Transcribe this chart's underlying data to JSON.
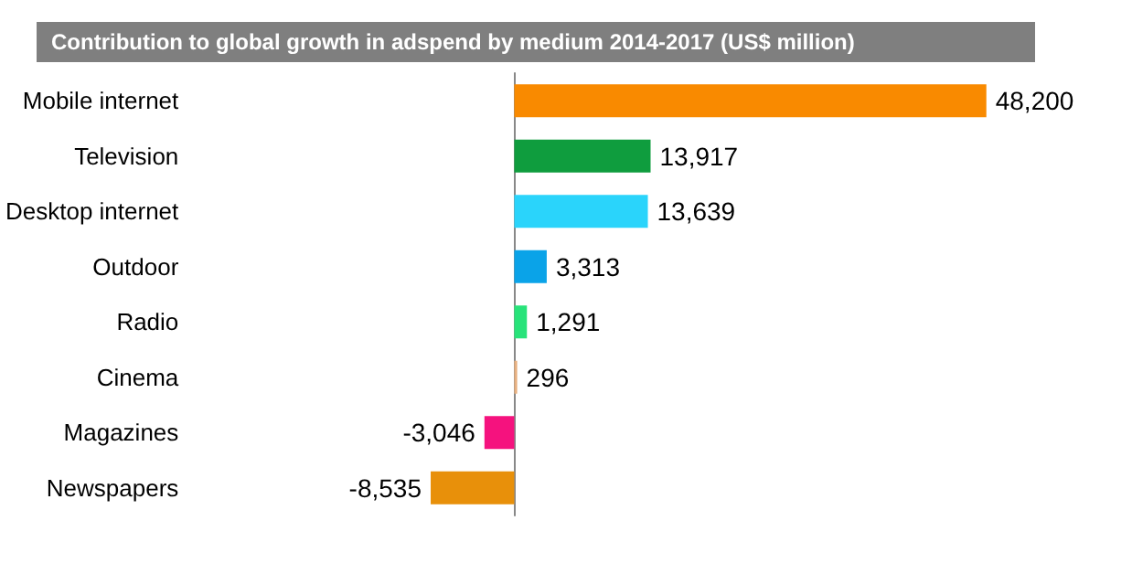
{
  "chart_data": {
    "type": "bar",
    "orientation": "horizontal",
    "title": "Contribution to global growth in adspend by medium 2014-2017 (US$ million)",
    "categories": [
      "Mobile internet",
      "Television",
      "Desktop internet",
      "Outdoor",
      "Radio",
      "Cinema",
      "Magazines",
      "Newspapers"
    ],
    "values": [
      48200,
      13917,
      13639,
      3313,
      1291,
      296,
      -3046,
      -8535
    ],
    "colors": [
      "#f98a00",
      "#0f9d3e",
      "#2ad4fb",
      "#0aa3e8",
      "#28e37a",
      "#e8b080",
      "#f5127e",
      "#e8900a"
    ],
    "value_labels": [
      "48,200",
      "13,917",
      "13,639",
      "3,313",
      "1,291",
      "296",
      "-3,046",
      "-8,535"
    ],
    "data_labels": false
  }
}
